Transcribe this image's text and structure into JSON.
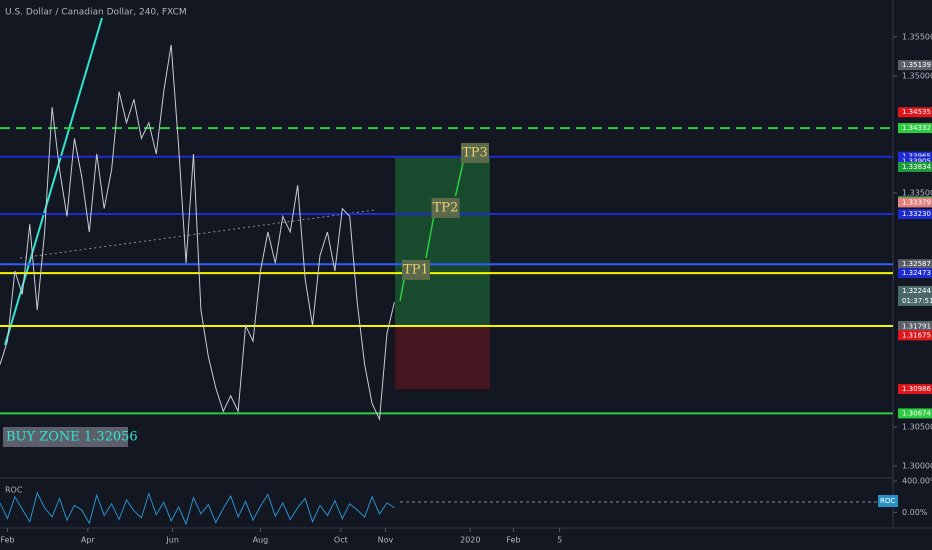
{
  "chart_data": [
    {
      "type": "line",
      "title": "U.S. Dollar / Canadian Dollar, 240, FXCM",
      "color": "#c8ccd4",
      "x": [
        0,
        5,
        10,
        15,
        20,
        25,
        30,
        35,
        40,
        45,
        50,
        55,
        60,
        65,
        70,
        75,
        80,
        85,
        90,
        95,
        100,
        105,
        110,
        115,
        120,
        125,
        130,
        135,
        140,
        145,
        150,
        155,
        160,
        165,
        170,
        175,
        180,
        185,
        190,
        195,
        200,
        205,
        210,
        215,
        220,
        225,
        230,
        235,
        240,
        245,
        250,
        255,
        260,
        265
      ],
      "values": [
        1.313,
        1.316,
        1.325,
        1.322,
        1.331,
        1.32,
        1.33,
        1.346,
        1.338,
        1.332,
        1.342,
        1.337,
        1.33,
        1.34,
        1.333,
        1.338,
        1.348,
        1.344,
        1.347,
        1.342,
        1.344,
        1.34,
        1.348,
        1.354,
        1.341,
        1.326,
        1.34,
        1.32,
        1.314,
        1.31,
        1.307,
        1.309,
        1.307,
        1.318,
        1.316,
        1.325,
        1.33,
        1.326,
        1.332,
        1.33,
        1.336,
        1.324,
        1.318,
        1.327,
        1.33,
        1.325,
        1.333,
        1.332,
        1.321,
        1.313,
        1.308,
        1.306,
        1.317,
        1.321
      ],
      "xlim": [
        0,
        600
      ],
      "xticks": [
        {
          "value": 5,
          "label": "Feb"
        },
        {
          "value": 59,
          "label": "Apr"
        },
        {
          "value": 116,
          "label": "Jun"
        },
        {
          "value": 175,
          "label": "Aug"
        },
        {
          "value": 229,
          "label": "Oct"
        },
        {
          "value": 259,
          "label": "Nov"
        },
        {
          "value": 316,
          "label": "2020"
        },
        {
          "value": 345,
          "label": "Feb"
        },
        {
          "value": 376,
          "label": "5"
        }
      ],
      "ylim": [
        1.29846,
        1.35974
      ],
      "yticks": [
        {
          "value": 1.3,
          "label": "1.30000"
        },
        {
          "value": 1.305,
          "label": "1.30500"
        },
        {
          "value": 1.335,
          "label": "1.33500"
        },
        {
          "value": 1.35,
          "label": "1.35000"
        },
        {
          "value": 1.355,
          "label": "1.35500"
        }
      ],
      "levels": [
        {
          "value": 1.34332,
          "color": "#2ecc40",
          "dash": true
        },
        {
          "value": 1.33965,
          "color": "#1e2bd0"
        },
        {
          "value": 1.3323,
          "color": "#1e2bd0"
        },
        {
          "value": 1.32587,
          "color": "#2f5bff"
        },
        {
          "value": 1.32473,
          "color": "#f5f500"
        },
        {
          "value": 1.31795,
          "color": "#f5f500"
        },
        {
          "value": 1.30674,
          "color": "#2ecc40"
        }
      ],
      "position": {
        "entry": 1.31795,
        "target": 1.33965,
        "stop": 1.30986
      },
      "targets": [
        {
          "label": "TP1",
          "value": 1.32513
        },
        {
          "label": "TP2",
          "value": 1.33308
        },
        {
          "label": "TP3",
          "value": 1.34013
        }
      ],
      "annotation": {
        "label": "BUY ZONE 1.32056",
        "value": 1.32056
      },
      "price_labels": [
        {
          "value": 1.35139,
          "label": "1.35139",
          "color": "#5d606b"
        },
        {
          "value": 1.34535,
          "label": "1.34535",
          "color": "#e0161d"
        },
        {
          "value": 1.34332,
          "label": "1.34332",
          "color": "#2ecc40"
        },
        {
          "value": 1.33965,
          "label": "1.33965",
          "color": "#1e2bd0"
        },
        {
          "value": 1.33905,
          "label": "1.33905",
          "color": "#1e2bd0"
        },
        {
          "value": 1.33834,
          "label": "1.33834",
          "color": "#1f9d3a"
        },
        {
          "value": 1.33395,
          "label": "1.33395",
          "color": "#1f9d3a"
        },
        {
          "value": 1.33379,
          "label": "1.33379",
          "color": "#e08080"
        },
        {
          "value": 1.3323,
          "label": "1.33230",
          "color": "#1e2bd0"
        },
        {
          "value": 1.32587,
          "label": "1.32587",
          "color": "#5d606b"
        },
        {
          "value": 1.32473,
          "label": "1.32473",
          "color": "#1e2bd0"
        },
        {
          "value": 1.32244,
          "label": "1.32244",
          "color": "#4a6a6a"
        },
        {
          "value": 1.31795,
          "label": "1.31795",
          "color": "#1f9d3a"
        },
        {
          "value": 1.31791,
          "label": "1.31791",
          "color": "#5d606b"
        },
        {
          "value": 1.31675,
          "label": "1.31675",
          "color": "#e0161d"
        },
        {
          "value": 1.30986,
          "label": "1.30986",
          "color": "#e0161d"
        },
        {
          "value": 1.30674,
          "label": "1.30674",
          "color": "#2ecc40"
        }
      ],
      "countdown": "01:37:51"
    },
    {
      "type": "line",
      "title": "ROC",
      "color": "#2a90c8",
      "legend": "ROC",
      "x": [
        0,
        5,
        10,
        15,
        20,
        25,
        30,
        35,
        40,
        45,
        50,
        55,
        60,
        65,
        70,
        75,
        80,
        85,
        90,
        95,
        100,
        105,
        110,
        115,
        120,
        125,
        130,
        135,
        140,
        145,
        150,
        155,
        160,
        165,
        170,
        175,
        180,
        185,
        190,
        195,
        200,
        205,
        210,
        215,
        220,
        225,
        230,
        235,
        240,
        245,
        250,
        255,
        260,
        265
      ],
      "values": [
        120,
        -80,
        200,
        40,
        -120,
        250,
        60,
        -60,
        180,
        -100,
        90,
        30,
        -140,
        220,
        -40,
        110,
        -90,
        160,
        20,
        -70,
        240,
        -30,
        130,
        -110,
        70,
        -150,
        190,
        -20,
        100,
        -130,
        50,
        210,
        -60,
        140,
        -100,
        80,
        230,
        -50,
        120,
        -90,
        60,
        180,
        -120,
        90,
        -40,
        150,
        -80,
        110,
        30,
        -60,
        200,
        -20,
        120,
        60
      ],
      "xlim": [
        0,
        600
      ],
      "ylim": [
        -200,
        440
      ],
      "yticks": [
        {
          "value": 400,
          "label": "400.00%"
        },
        {
          "value": 0,
          "label": "0.00%"
        }
      ]
    }
  ]
}
